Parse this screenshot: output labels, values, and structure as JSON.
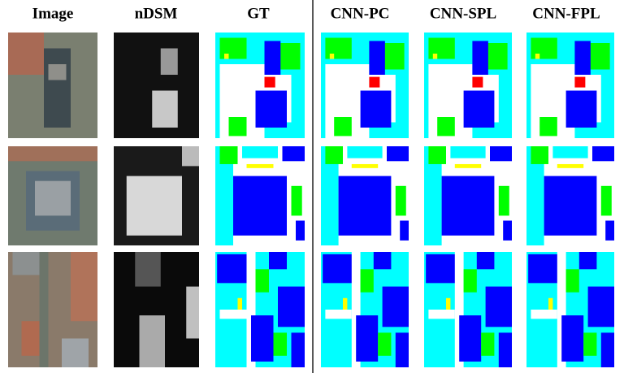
{
  "columns": [
    "Image",
    "nDSM",
    "GT",
    "CNN-PC",
    "CNN-SPL",
    "CNN-FPL"
  ]
}
